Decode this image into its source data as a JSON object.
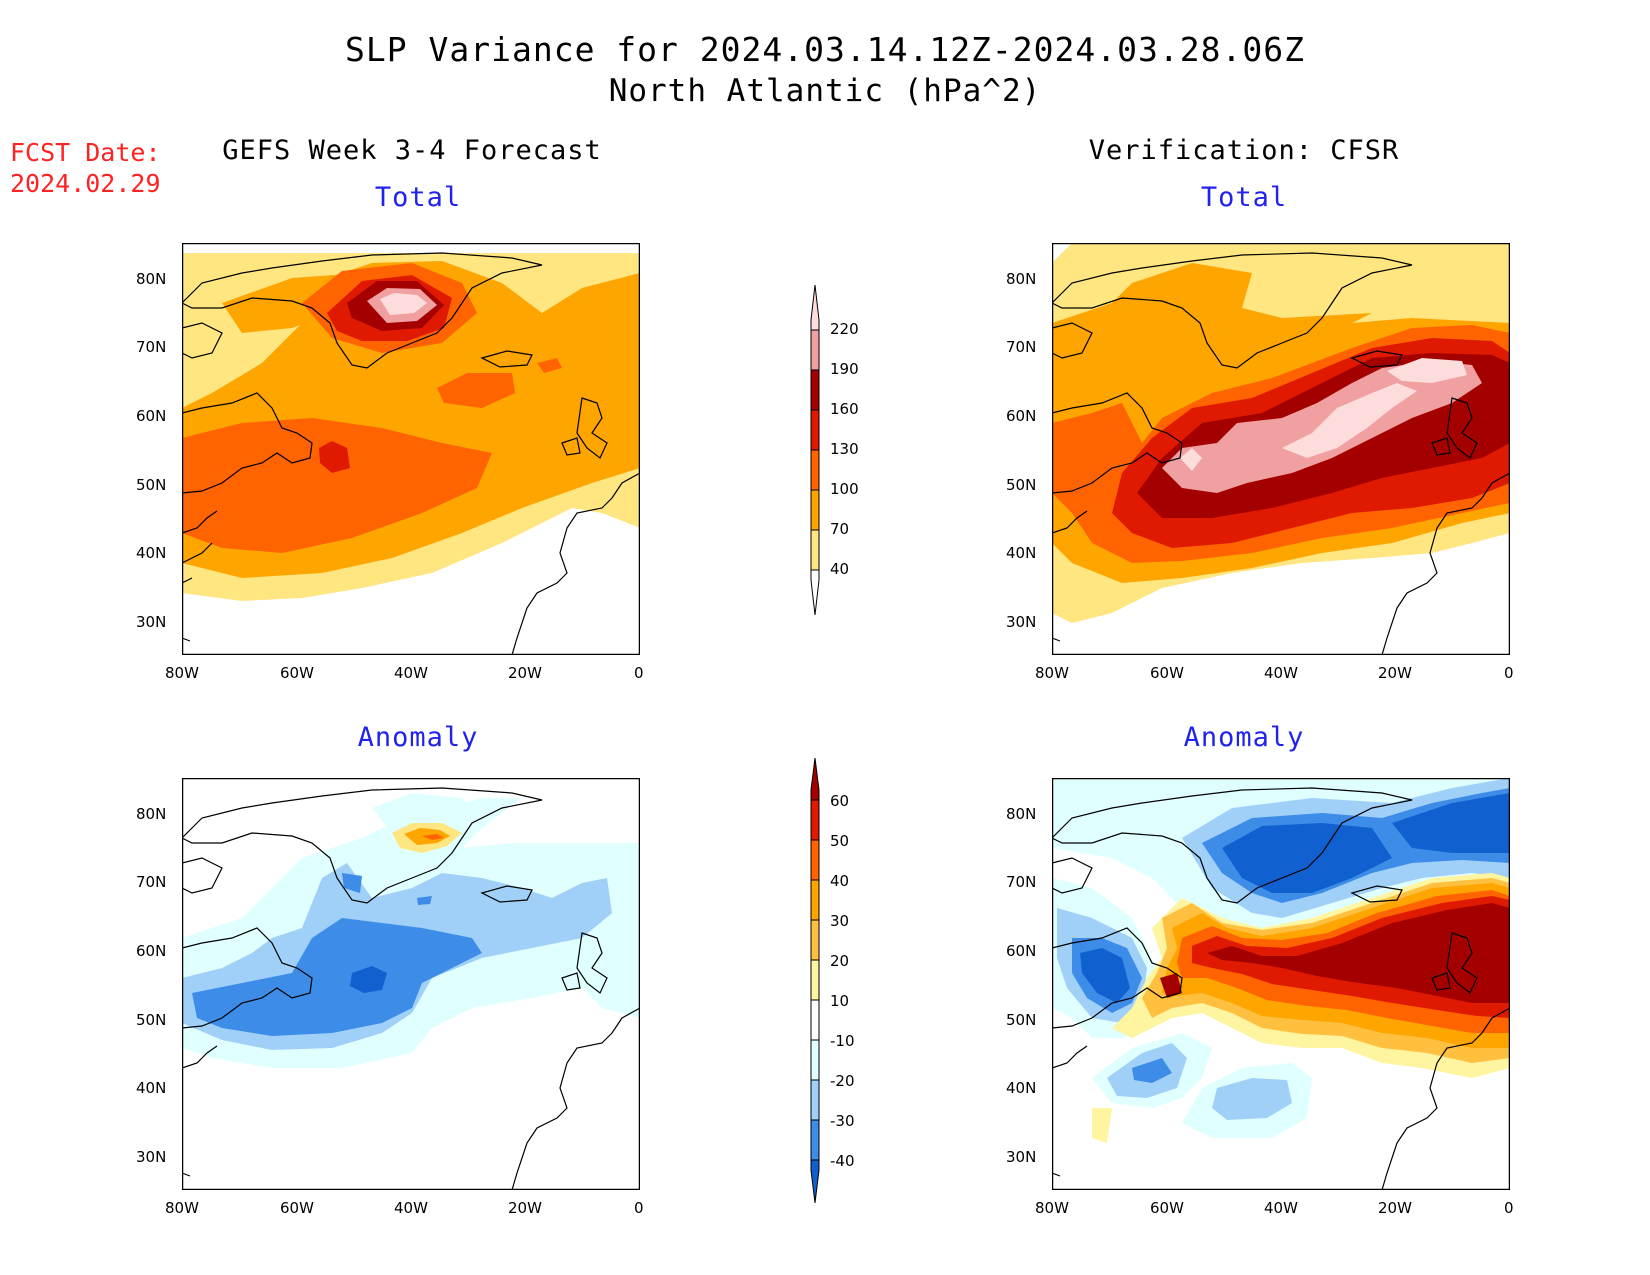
{
  "title": "SLP Variance for 2024.03.14.12Z-2024.03.28.06Z",
  "subtitle": "North Atlantic (hPa^2)",
  "fcst_date": {
    "label": "FCST Date:",
    "value": "2024.02.29"
  },
  "left_header": "GEFS Week 3-4 Forecast",
  "right_header": "Verification: CFSR",
  "panels": {
    "top_left": {
      "label": "Total"
    },
    "top_right": {
      "label": "Total"
    },
    "bottom_left": {
      "label": "Anomaly"
    },
    "bottom_right": {
      "label": "Anomaly"
    }
  },
  "axes": {
    "lat_labels": [
      "80N",
      "70N",
      "60N",
      "50N",
      "40N",
      "30N"
    ],
    "lon_labels": [
      "80W",
      "60W",
      "40W",
      "20W",
      "0"
    ]
  },
  "colorbar_total": {
    "levels": [
      "220",
      "190",
      "160",
      "130",
      "100",
      "70",
      "40"
    ],
    "colors": [
      "#fddcdc",
      "#f0a0a0",
      "#a50000",
      "#e01a00",
      "#ff6400",
      "#ffa500",
      "#ffe680"
    ]
  },
  "colorbar_anomaly": {
    "levels": [
      "60",
      "50",
      "40",
      "30",
      "20",
      "10",
      "-10",
      "-20",
      "-30",
      "-40"
    ],
    "colors": [
      "#a50000",
      "#e01a00",
      "#ff6400",
      "#ffa500",
      "#ffc040",
      "#fff4a0",
      "#ffffff",
      "#e0ffff",
      "#a0d0f8",
      "#3c8ce8",
      "#1060d0"
    ]
  }
}
